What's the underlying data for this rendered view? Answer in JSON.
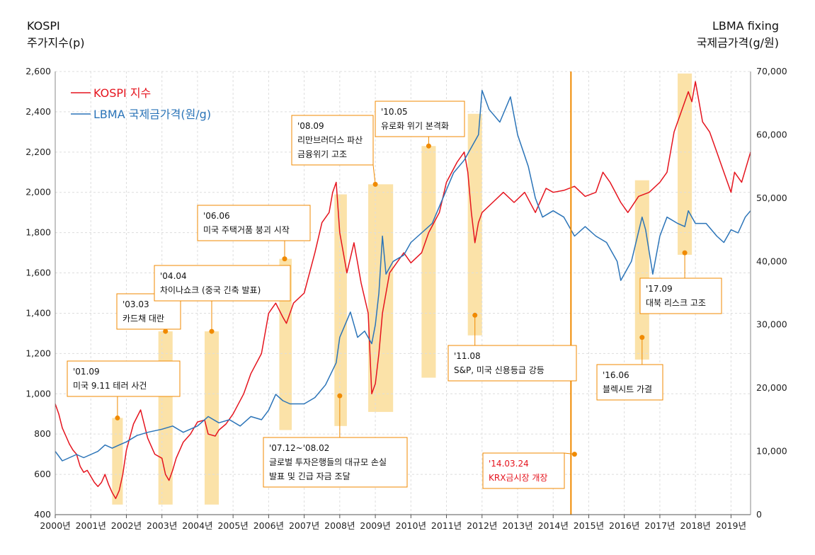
{
  "colors": {
    "kospi": "#e5141e",
    "lbma": "#2b74b8",
    "highlight": "#fbe2a8",
    "annotation": "#f08a00",
    "grid": "#dddddd"
  },
  "chart_data": {
    "type": "line",
    "left_axis_title": [
      "KOSPI",
      "주가지수(p)"
    ],
    "right_axis_title": [
      "LBMA fixing",
      "국제금가격(g/원)"
    ],
    "x_tick_labels": [
      "2000년",
      "2001년",
      "2002년",
      "2003년",
      "2004년",
      "2005년",
      "2006년",
      "2007년",
      "2008년",
      "2009년",
      "2010년",
      "2011년",
      "2012년",
      "2013년",
      "2014년",
      "2015년",
      "2016년",
      "2017년",
      "2018년",
      "2019년"
    ],
    "xlim": [
      2000.0,
      2019.55
    ],
    "ylim_left": [
      400,
      2600
    ],
    "ylim_right": [
      0,
      70000
    ],
    "y_left_ticks": [
      "400",
      "600",
      "800",
      "1,000",
      "1,200",
      "1,400",
      "1,600",
      "1,800",
      "2,000",
      "2,200",
      "2,400",
      "2,600"
    ],
    "y_right_ticks": [
      "0",
      "10,000",
      "20,000",
      "30,000",
      "40,000",
      "50,000",
      "60,000",
      "70,000"
    ],
    "grid": true,
    "legend_position": "top-left",
    "series": [
      {
        "name": "KOSPI 지수",
        "axis": "left",
        "x": [
          2000.0,
          2000.1,
          2000.2,
          2000.3,
          2000.4,
          2000.5,
          2000.6,
          2000.7,
          2000.8,
          2000.9,
          2001.0,
          2001.1,
          2001.2,
          2001.3,
          2001.4,
          2001.5,
          2001.6,
          2001.7,
          2001.8,
          2001.9,
          2002.0,
          2002.2,
          2002.4,
          2002.6,
          2002.8,
          2003.0,
          2003.1,
          2003.2,
          2003.3,
          2003.4,
          2003.6,
          2003.8,
          2004.0,
          2004.2,
          2004.3,
          2004.5,
          2004.6,
          2004.8,
          2005.0,
          2005.3,
          2005.5,
          2005.8,
          2006.0,
          2006.2,
          2006.4,
          2006.5,
          2006.7,
          2007.0,
          2007.3,
          2007.5,
          2007.7,
          2007.8,
          2007.9,
          2008.0,
          2008.1,
          2008.2,
          2008.4,
          2008.5,
          2008.6,
          2008.8,
          2008.85,
          2008.9,
          2009.0,
          2009.1,
          2009.2,
          2009.4,
          2009.6,
          2009.8,
          2010.0,
          2010.3,
          2010.5,
          2010.8,
          2011.0,
          2011.3,
          2011.5,
          2011.6,
          2011.7,
          2011.8,
          2011.9,
          2012.0,
          2012.3,
          2012.6,
          2012.9,
          2013.2,
          2013.5,
          2013.8,
          2014.0,
          2014.3,
          2014.6,
          2014.9,
          2015.2,
          2015.4,
          2015.6,
          2015.9,
          2016.1,
          2016.4,
          2016.7,
          2017.0,
          2017.2,
          2017.4,
          2017.6,
          2017.8,
          2017.9,
          2018.0,
          2018.1,
          2018.2,
          2018.4,
          2018.6,
          2018.8,
          2019.0,
          2019.1,
          2019.3,
          2019.55
        ],
        "values": [
          950,
          900,
          830,
          790,
          750,
          720,
          700,
          640,
          610,
          620,
          590,
          560,
          540,
          560,
          600,
          550,
          510,
          480,
          520,
          600,
          720,
          850,
          920,
          780,
          700,
          680,
          600,
          570,
          620,
          680,
          760,
          800,
          860,
          870,
          800,
          790,
          820,
          850,
          900,
          1000,
          1100,
          1200,
          1400,
          1450,
          1380,
          1350,
          1450,
          1500,
          1700,
          1850,
          1900,
          2000,
          2050,
          1800,
          1700,
          1600,
          1750,
          1650,
          1550,
          1400,
          1200,
          1000,
          1050,
          1200,
          1400,
          1600,
          1650,
          1700,
          1650,
          1700,
          1800,
          1900,
          2050,
          2150,
          2200,
          2100,
          1900,
          1750,
          1850,
          1900,
          1950,
          2000,
          1950,
          2000,
          1900,
          2020,
          2000,
          2010,
          2030,
          1980,
          2000,
          2100,
          2050,
          1950,
          1900,
          1980,
          2000,
          2050,
          2100,
          2300,
          2400,
          2500,
          2450,
          2550,
          2450,
          2350,
          2300,
          2200,
          2100,
          2000,
          2100,
          2050,
          2200
        ]
      },
      {
        "name": "LBMA 국제금가격(원/g)",
        "axis": "right",
        "x": [
          2000.0,
          2000.2,
          2000.4,
          2000.6,
          2000.8,
          2001.0,
          2001.2,
          2001.4,
          2001.6,
          2001.8,
          2002.0,
          2002.3,
          2002.6,
          2003.0,
          2003.3,
          2003.6,
          2004.0,
          2004.3,
          2004.6,
          2004.9,
          2005.2,
          2005.5,
          2005.8,
          2006.0,
          2006.2,
          2006.4,
          2006.6,
          2006.8,
          2007.0,
          2007.3,
          2007.6,
          2007.9,
          2008.0,
          2008.15,
          2008.3,
          2008.5,
          2008.7,
          2008.9,
          2009.0,
          2009.1,
          2009.2,
          2009.3,
          2009.5,
          2009.8,
          2010.0,
          2010.3,
          2010.6,
          2010.9,
          2011.2,
          2011.5,
          2011.7,
          2011.9,
          2012.0,
          2012.2,
          2012.5,
          2012.8,
          2013.0,
          2013.3,
          2013.5,
          2013.7,
          2014.0,
          2014.3,
          2014.6,
          2014.9,
          2015.2,
          2015.5,
          2015.8,
          2015.9,
          2016.0,
          2016.2,
          2016.5,
          2016.6,
          2016.8,
          2017.0,
          2017.2,
          2017.5,
          2017.7,
          2017.8,
          2018.0,
          2018.3,
          2018.6,
          2018.8,
          2019.0,
          2019.2,
          2019.4,
          2019.55
        ],
        "values": [
          10000,
          8500,
          9000,
          9500,
          9000,
          9500,
          10000,
          11000,
          10500,
          11000,
          11500,
          12500,
          13000,
          13500,
          14000,
          13000,
          14000,
          15500,
          14500,
          15000,
          14000,
          15500,
          15000,
          16500,
          19000,
          18000,
          17500,
          17500,
          17500,
          18500,
          20500,
          24000,
          28000,
          30000,
          32000,
          28000,
          29000,
          27000,
          30000,
          35000,
          44000,
          38000,
          40000,
          41000,
          43000,
          44500,
          46000,
          50000,
          54000,
          56000,
          58000,
          60000,
          67000,
          64000,
          62000,
          66000,
          60000,
          55000,
          50000,
          47000,
          48000,
          47000,
          44000,
          45500,
          44000,
          43000,
          40000,
          37000,
          38000,
          40000,
          47000,
          45000,
          38000,
          44000,
          47000,
          46000,
          45500,
          48000,
          46000,
          46000,
          44000,
          43000,
          45000,
          44500,
          47000,
          48000
        ]
      }
    ],
    "highlight_bands": [
      {
        "x_start": 2001.6,
        "x_end": 2001.9,
        "y_top": 880,
        "y_bottom": 450
      },
      {
        "x_start": 2002.9,
        "x_end": 2003.3,
        "y_top": 1310,
        "y_bottom": 450
      },
      {
        "x_start": 2004.2,
        "x_end": 2004.6,
        "y_top": 1310,
        "y_bottom": 450
      },
      {
        "x_start": 2006.3,
        "x_end": 2006.65,
        "y_top": 1670,
        "y_bottom": 820
      },
      {
        "x_start": 2007.85,
        "x_end": 2008.2,
        "y_top": 1990,
        "y_bottom": 840
      },
      {
        "x_start": 2008.8,
        "x_end": 2009.5,
        "y_top": 2040,
        "y_bottom": 910
      },
      {
        "x_start": 2010.3,
        "x_end": 2010.7,
        "y_top": 2230,
        "y_bottom": 1080
      },
      {
        "x_start": 2011.6,
        "x_end": 2012.0,
        "y_top": 2390,
        "y_bottom": 1290
      },
      {
        "x_start": 2016.3,
        "x_end": 2016.7,
        "y_top": 2060,
        "y_bottom": 1170
      },
      {
        "x_start": 2017.5,
        "x_end": 2017.9,
        "y_top": 2590,
        "y_bottom": 1690
      }
    ],
    "annotations": [
      {
        "lines": [
          "'01.09",
          "미국 9.11 테러 사건"
        ],
        "point_x": 2001.75,
        "point_y": 880,
        "color": "black"
      },
      {
        "lines": [
          "'03.03",
          "카드채 대란"
        ],
        "point_x": 2003.1,
        "point_y": 1310,
        "color": "black"
      },
      {
        "lines": [
          "'04.04",
          "차이나쇼크 (중국 긴축 발표)"
        ],
        "point_x": 2004.4,
        "point_y": 1310,
        "color": "black"
      },
      {
        "lines": [
          "'06.06",
          "미국 주택거품 붕괴 시작"
        ],
        "point_x": 2006.45,
        "point_y": 1670,
        "color": "black"
      },
      {
        "lines": [
          "'07.12~'08.02",
          "글로벌 투자은행들의 대규모 손실",
          "발표 및 긴급 자금 조달"
        ],
        "point_x": 2008.0,
        "point_y": 990,
        "color": "black"
      },
      {
        "lines": [
          "'08.09",
          "리만브러더스 파산",
          "금융위기 고조"
        ],
        "point_x": 2009.0,
        "point_y": 2040,
        "color": "black"
      },
      {
        "lines": [
          "'10.05",
          "유로화 위기 본격화"
        ],
        "point_x": 2010.5,
        "point_y": 2230,
        "color": "black"
      },
      {
        "lines": [
          "'11.08",
          "S&P, 미국 신용등급 강등"
        ],
        "point_x": 2011.8,
        "point_y": 1390,
        "color": "black"
      },
      {
        "lines": [
          "'14.03.24",
          "KRX금시장 개장"
        ],
        "point_x": 2014.6,
        "point_y": 700,
        "color": "red"
      },
      {
        "lines": [
          "'16.06",
          "블렉시트 가결"
        ],
        "point_x": 2016.5,
        "point_y": 1280,
        "color": "black"
      },
      {
        "lines": [
          "'17.09",
          "대북 리스크 고조"
        ],
        "point_x": 2017.7,
        "point_y": 1700,
        "color": "black"
      }
    ],
    "vertical_marker_x": 2014.5
  }
}
